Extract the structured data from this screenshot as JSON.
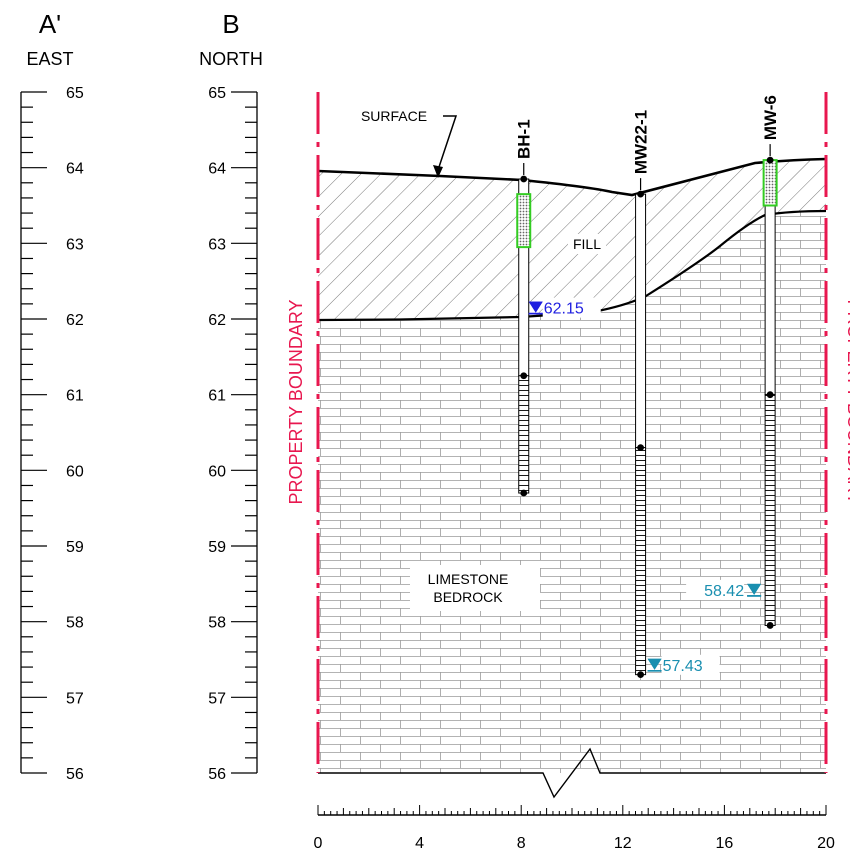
{
  "header": {
    "left_letter": "A'",
    "left_direction": "EAST",
    "right_letter": "B",
    "right_direction": "NORTH"
  },
  "elevation_ticks": [
    "65",
    "64",
    "63",
    "62",
    "61",
    "60",
    "59",
    "58",
    "57",
    "56"
  ],
  "horizontal_ticks": [
    "0",
    "4",
    "8",
    "12",
    "16",
    "20"
  ],
  "labels": {
    "surface": "SURFACE",
    "fill": "FILL",
    "limestone_line1": "LIMESTONE",
    "limestone_line2": "BEDROCK",
    "property_boundary": "PROPERTY BOUNDARY"
  },
  "wells": [
    {
      "name": "BH-1",
      "x": 8.1,
      "top_elev": 63.85,
      "screen_top": 61.25,
      "screen_bottom": 59.7,
      "water_level": "62.15"
    },
    {
      "name": "MW22-1",
      "x": 12.7,
      "top_elev": 63.65,
      "screen_top": 60.3,
      "screen_bottom": 57.3,
      "water_level": "57.43"
    },
    {
      "name": "MW-6",
      "x": 17.8,
      "top_elev": 64.1,
      "screen_top": 61.0,
      "screen_bottom": 57.95,
      "water_level": "58.42"
    }
  ],
  "colors": {
    "property_boundary": "#e8174f",
    "water_level_bh1": "#1f1fe0",
    "water_level_other": "#1a8fb0",
    "sample_box": "#33cc22"
  }
}
